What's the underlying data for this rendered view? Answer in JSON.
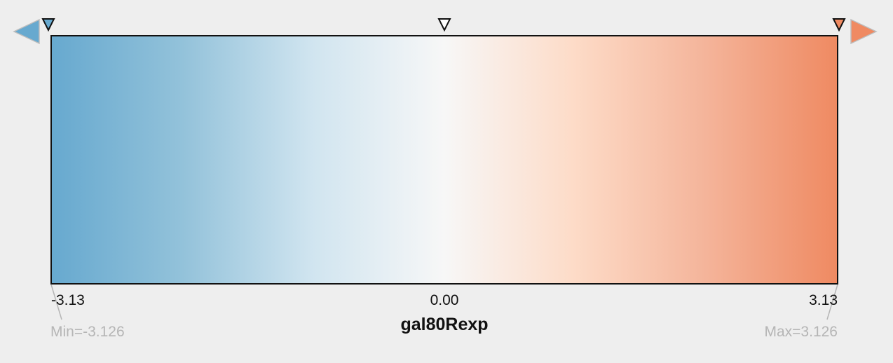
{
  "colormap": {
    "attribute_name": "gal80Rexp",
    "colors": {
      "min": "#67a9cf",
      "mid": "#f7f7f7",
      "max": "#ef8a62",
      "gradient_stops": [
        "#67a9cf",
        "#93c2da",
        "#d1e5f0",
        "#f7f7f7",
        "#fddbc7",
        "#f4b49a",
        "#ef8a62"
      ]
    },
    "tick_labels": {
      "min": "-3.13",
      "mid": "0.00",
      "max": "3.13"
    },
    "range": {
      "min_label": "Min=-3.126",
      "max_label": "Max=3.126"
    },
    "handles": [
      {
        "name": "min-handle",
        "value": -3.126,
        "color": "#67a9cf"
      },
      {
        "name": "mid-handle",
        "value": 0.0,
        "color": "#ffffff"
      },
      {
        "name": "max-handle",
        "value": 3.126,
        "color": "#ef8a62"
      }
    ],
    "buttons": {
      "below_range_color": "#67a9cf",
      "above_range_color": "#ef8a62"
    },
    "icons": {
      "left": "triangle-left-icon",
      "right": "triangle-right-icon",
      "handle": "triangle-down-icon"
    }
  }
}
